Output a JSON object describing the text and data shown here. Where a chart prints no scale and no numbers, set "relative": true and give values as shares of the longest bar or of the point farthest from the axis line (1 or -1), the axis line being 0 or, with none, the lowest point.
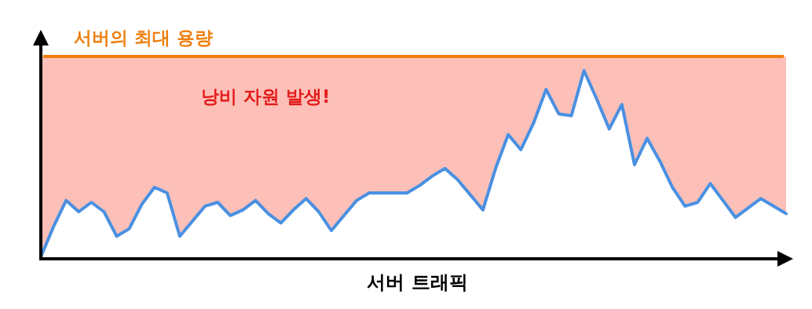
{
  "chart_data": {
    "type": "line",
    "relative": true,
    "xlabel": "서버 트래픽",
    "categories": [
      null,
      null,
      null,
      null,
      null,
      null,
      null,
      null,
      null,
      null,
      null,
      null,
      null,
      null,
      null,
      null,
      null,
      null,
      null,
      null,
      null,
      null,
      null,
      null,
      null,
      null,
      null,
      null,
      null,
      null,
      null,
      null,
      null,
      null,
      null,
      null,
      null,
      null,
      null,
      null,
      null,
      null,
      null,
      null,
      null,
      null,
      null,
      null,
      null,
      null,
      null,
      null,
      null,
      null,
      null,
      null,
      null,
      null,
      null,
      null
    ],
    "series": [
      {
        "color": "#4a90e2",
        "values": [
          0.01,
          0.17,
          0.31,
          0.25,
          0.3,
          0.25,
          0.12,
          0.16,
          0.29,
          0.38,
          0.35,
          0.12,
          0.2,
          0.28,
          0.3,
          0.23,
          0.26,
          0.31,
          0.24,
          0.19,
          0.26,
          0.32,
          0.25,
          0.15,
          0.23,
          0.31,
          0.35,
          0.35,
          0.35,
          0.35,
          0.39,
          0.44,
          0.48,
          0.42,
          0.34,
          0.26,
          0.48,
          0.66,
          0.58,
          0.72,
          0.9,
          0.77,
          0.76,
          1,
          0.85,
          0.69,
          0.82,
          0.5,
          0.64,
          0.52,
          0.38,
          0.28,
          0.3,
          0.4,
          0.31,
          0.22,
          0.27,
          0.32,
          0.28,
          0.24
        ]
      }
    ],
    "ref_lines": [
      {
        "axis": "y",
        "value": 1.075,
        "label": "서버의 최대 용량",
        "color": "#ee8011"
      }
    ],
    "bands": [
      {
        "axis": "y",
        "from": 0,
        "to": 1.075,
        "label": "낭비 자원 발생!",
        "color": "#fdc0b8"
      }
    ],
    "marker": "none",
    "line_style": "solid"
  }
}
